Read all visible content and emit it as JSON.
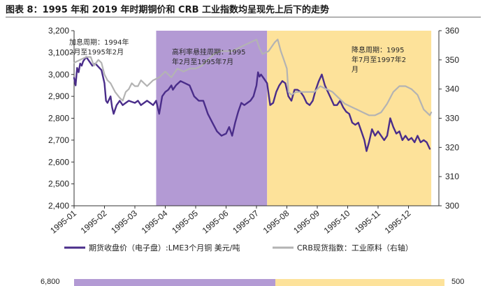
{
  "page_title": "图表 8：1995 年和 2019 年时期铜价和 CRB 工业指数均呈现先上后下的走势",
  "bottom_strip": {
    "left_value": "6,800",
    "right_value": "500"
  },
  "chart_data": {
    "type": "line",
    "title": "图表 8：1995 年和 2019 年时期铜价和 CRB 工业指数均呈现先上后下的走势",
    "x_tick_labels": [
      "1995-01",
      "1995-02",
      "1995-03",
      "1995-04",
      "1995-05",
      "1995-06",
      "1995-07",
      "1995-08",
      "1995-09",
      "1995-10",
      "1995-11",
      "1995-12"
    ],
    "left_axis": {
      "range": [
        2400,
        3200
      ],
      "ticks": [
        "2,400",
        "2,500",
        "2,600",
        "2,700",
        "2,800",
        "2,900",
        "3,000",
        "3,100",
        "3,200"
      ]
    },
    "right_axis": {
      "range": [
        300,
        360
      ],
      "ticks": [
        "300",
        "310",
        "320",
        "330",
        "340",
        "350",
        "360"
      ]
    },
    "shaded_periods": [
      {
        "label": "高利率悬挂周期：1995年2月至1995年7月",
        "start": 2.7,
        "end": 6.35,
        "color": "#b39ad4"
      },
      {
        "label": "降息周期：1995年7月至1997年2月",
        "start": 6.35,
        "end": 11.75,
        "color": "#fde29a"
      }
    ],
    "annotations": [
      {
        "lines": [
          "加息周期：1994年",
          "2月至1995年2月"
        ]
      },
      {
        "lines": [
          "高利率悬挂周期：1995",
          "年2月至1995年7月"
        ]
      },
      {
        "lines": [
          "降息周期：1995",
          "年7月至1997年2",
          "月"
        ]
      }
    ],
    "series": [
      {
        "name": "期货收盘价（电子盘）:LME3个月铜 美元/吨",
        "axis": "left",
        "color": "#4a2d8a",
        "points": [
          [
            0.0,
            2985
          ],
          [
            0.05,
            2950
          ],
          [
            0.1,
            3030
          ],
          [
            0.15,
            3010
          ],
          [
            0.2,
            3050
          ],
          [
            0.25,
            3040
          ],
          [
            0.3,
            3060
          ],
          [
            0.4,
            3080
          ],
          [
            0.5,
            3060
          ],
          [
            0.6,
            3040
          ],
          [
            0.7,
            3050
          ],
          [
            0.8,
            3035
          ],
          [
            0.9,
            3020
          ],
          [
            1.0,
            2960
          ],
          [
            1.05,
            2880
          ],
          [
            1.1,
            2870
          ],
          [
            1.2,
            2900
          ],
          [
            1.25,
            2850
          ],
          [
            1.3,
            2820
          ],
          [
            1.4,
            2860
          ],
          [
            1.5,
            2880
          ],
          [
            1.6,
            2860
          ],
          [
            1.7,
            2870
          ],
          [
            1.8,
            2880
          ],
          [
            1.9,
            2875
          ],
          [
            2.0,
            2870
          ],
          [
            2.1,
            2880
          ],
          [
            2.2,
            2860
          ],
          [
            2.3,
            2870
          ],
          [
            2.4,
            2880
          ],
          [
            2.5,
            2870
          ],
          [
            2.6,
            2860
          ],
          [
            2.7,
            2880
          ],
          [
            2.8,
            2820
          ],
          [
            2.9,
            2900
          ],
          [
            3.0,
            2920
          ],
          [
            3.1,
            2930
          ],
          [
            3.2,
            2950
          ],
          [
            3.25,
            2930
          ],
          [
            3.35,
            2950
          ],
          [
            3.5,
            2970
          ],
          [
            3.65,
            2960
          ],
          [
            3.8,
            2950
          ],
          [
            3.95,
            2900
          ],
          [
            4.1,
            2880
          ],
          [
            4.25,
            2880
          ],
          [
            4.4,
            2820
          ],
          [
            4.55,
            2780
          ],
          [
            4.7,
            2740
          ],
          [
            4.85,
            2720
          ],
          [
            5.0,
            2730
          ],
          [
            5.1,
            2760
          ],
          [
            5.2,
            2720
          ],
          [
            5.3,
            2780
          ],
          [
            5.4,
            2830
          ],
          [
            5.5,
            2870
          ],
          [
            5.6,
            2860
          ],
          [
            5.7,
            2870
          ],
          [
            5.8,
            2880
          ],
          [
            5.9,
            2900
          ],
          [
            6.0,
            2950
          ],
          [
            6.05,
            3010
          ],
          [
            6.1,
            2990
          ],
          [
            6.15,
            3000
          ],
          [
            6.25,
            2980
          ],
          [
            6.35,
            2960
          ],
          [
            6.45,
            2860
          ],
          [
            6.55,
            2870
          ],
          [
            6.65,
            2920
          ],
          [
            6.75,
            2950
          ],
          [
            6.85,
            2970
          ],
          [
            6.95,
            2960
          ],
          [
            7.05,
            2900
          ],
          [
            7.15,
            2880
          ],
          [
            7.25,
            2930
          ],
          [
            7.35,
            2930
          ],
          [
            7.45,
            2920
          ],
          [
            7.55,
            2900
          ],
          [
            7.65,
            2870
          ],
          [
            7.75,
            2860
          ],
          [
            7.85,
            2880
          ],
          [
            7.95,
            2930
          ],
          [
            8.05,
            2970
          ],
          [
            8.15,
            3000
          ],
          [
            8.25,
            2950
          ],
          [
            8.35,
            2920
          ],
          [
            8.45,
            2890
          ],
          [
            8.55,
            2860
          ],
          [
            8.65,
            2860
          ],
          [
            8.75,
            2880
          ],
          [
            8.85,
            2850
          ],
          [
            8.95,
            2830
          ],
          [
            9.05,
            2820
          ],
          [
            9.15,
            2780
          ],
          [
            9.25,
            2770
          ],
          [
            9.35,
            2780
          ],
          [
            9.45,
            2740
          ],
          [
            9.55,
            2700
          ],
          [
            9.62,
            2650
          ],
          [
            9.7,
            2690
          ],
          [
            9.8,
            2750
          ],
          [
            9.9,
            2720
          ],
          [
            10.0,
            2740
          ],
          [
            10.1,
            2720
          ],
          [
            10.2,
            2700
          ],
          [
            10.3,
            2720
          ],
          [
            10.4,
            2800
          ],
          [
            10.5,
            2760
          ],
          [
            10.6,
            2730
          ],
          [
            10.7,
            2740
          ],
          [
            10.8,
            2700
          ],
          [
            10.9,
            2720
          ],
          [
            11.0,
            2700
          ],
          [
            11.1,
            2710
          ],
          [
            11.2,
            2690
          ],
          [
            11.3,
            2720
          ],
          [
            11.4,
            2690
          ],
          [
            11.5,
            2700
          ],
          [
            11.6,
            2690
          ],
          [
            11.7,
            2660
          ]
        ]
      },
      {
        "name": "CRB现货指数：工业原料（右轴）",
        "axis": "right",
        "color": "#b3b3b3",
        "points": [
          [
            0.0,
            349
          ],
          [
            0.2,
            350
          ],
          [
            0.4,
            351
          ],
          [
            0.55,
            351
          ],
          [
            0.65,
            348
          ],
          [
            0.8,
            350
          ],
          [
            0.9,
            349
          ],
          [
            1.0,
            345
          ],
          [
            1.1,
            343
          ],
          [
            1.2,
            342
          ],
          [
            1.35,
            339
          ],
          [
            1.5,
            337
          ],
          [
            1.6,
            336
          ],
          [
            1.7,
            339
          ],
          [
            1.8,
            340
          ],
          [
            1.9,
            342
          ],
          [
            2.0,
            341
          ],
          [
            2.1,
            341
          ],
          [
            2.2,
            343
          ],
          [
            2.4,
            341
          ],
          [
            2.6,
            343
          ],
          [
            2.8,
            344
          ],
          [
            3.0,
            346
          ],
          [
            3.2,
            344
          ],
          [
            3.4,
            347
          ],
          [
            3.6,
            346
          ],
          [
            3.8,
            347
          ],
          [
            4.0,
            347
          ],
          [
            4.2,
            348
          ],
          [
            4.4,
            350
          ],
          [
            4.6,
            352
          ],
          [
            4.8,
            353
          ],
          [
            5.0,
            353
          ],
          [
            5.2,
            353
          ],
          [
            5.4,
            354
          ],
          [
            5.6,
            355
          ],
          [
            5.8,
            356
          ],
          [
            6.0,
            357
          ],
          [
            6.1,
            354
          ],
          [
            6.2,
            352
          ],
          [
            6.4,
            353
          ],
          [
            6.6,
            356
          ],
          [
            6.7,
            357
          ],
          [
            6.8,
            353
          ],
          [
            6.9,
            350
          ],
          [
            7.0,
            347
          ],
          [
            7.05,
            339
          ],
          [
            7.15,
            338
          ],
          [
            7.3,
            339
          ],
          [
            7.5,
            339
          ],
          [
            7.7,
            339
          ],
          [
            7.9,
            339
          ],
          [
            8.1,
            341
          ],
          [
            8.3,
            340
          ],
          [
            8.5,
            339
          ],
          [
            8.7,
            337
          ],
          [
            8.9,
            335
          ],
          [
            9.1,
            334
          ],
          [
            9.3,
            333
          ],
          [
            9.5,
            332
          ],
          [
            9.7,
            331
          ],
          [
            9.9,
            331
          ],
          [
            10.1,
            332
          ],
          [
            10.3,
            335
          ],
          [
            10.5,
            339
          ],
          [
            10.7,
            341
          ],
          [
            10.9,
            341
          ],
          [
            11.1,
            340
          ],
          [
            11.3,
            338
          ],
          [
            11.5,
            333
          ],
          [
            11.7,
            331
          ],
          [
            11.75,
            332
          ]
        ]
      }
    ]
  }
}
